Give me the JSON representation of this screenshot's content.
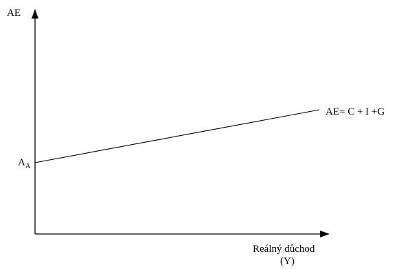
{
  "chart_data": {
    "type": "line",
    "ylabel": "AE",
    "xlabel_line1": "Reálný důchod",
    "xlabel_line2": "(Y)",
    "intercept_label_main": "A",
    "intercept_label_sub": "A",
    "series": [
      {
        "name": "AE= C + I +G",
        "line_label": "AE= C + I +G"
      }
    ],
    "grid": false,
    "axis_ticks": false
  },
  "colors": {
    "axis": "#000000",
    "line": "#000000",
    "background": "#ffffff"
  }
}
